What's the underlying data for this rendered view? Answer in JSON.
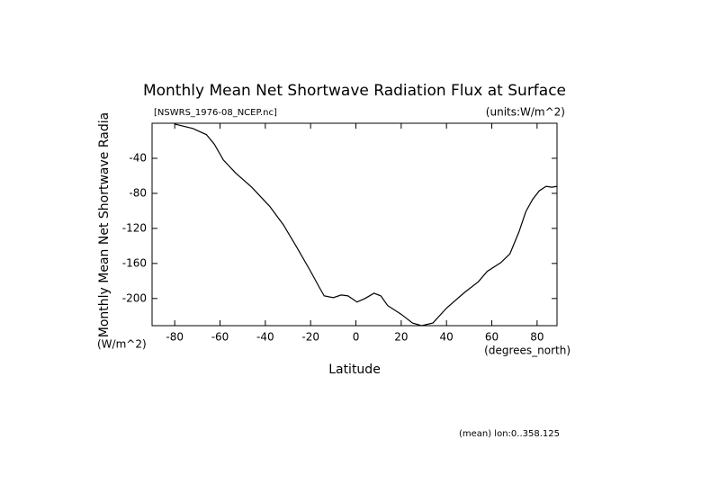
{
  "chart_data": {
    "type": "line",
    "title": "Monthly Mean Net Shortwave Radiation Flux at Surface",
    "file_label": "[NSWRS_1976-08_NCEP.nc]",
    "units_label": "(units:W/m^2)",
    "y_label": "Monthly Mean Net Shortwave Radia",
    "y_units": "(W/m^2)",
    "x_units": "(degrees_north)",
    "x_label": "Latitude",
    "footnote": "(mean) lon:0..358.125",
    "color": "#000000",
    "xlim": [
      -90,
      88.8
    ],
    "ylim": [
      -231,
      0
    ],
    "xticks": [
      -80,
      -60,
      -40,
      -20,
      0,
      20,
      40,
      60,
      80
    ],
    "yticks": [
      -40,
      -80,
      -120,
      -160,
      -200
    ],
    "series": [
      {
        "name": "NSWRS",
        "x": [
          -80,
          -72,
          -66,
          -62.5,
          -58.5,
          -53,
          -46,
          -38,
          -32,
          -26,
          -20,
          -16,
          -14,
          -10,
          -6.5,
          -3.5,
          0.5,
          4,
          8,
          11,
          14,
          20,
          25,
          29,
          34,
          40,
          48,
          54,
          58,
          64,
          68,
          72,
          75,
          78,
          81,
          84,
          86.5,
          88.8
        ],
        "values": [
          -1,
          -6,
          -13,
          -24,
          -42,
          -57,
          -73,
          -95,
          -116,
          -142,
          -169,
          -188,
          -197,
          -199,
          -196,
          -197,
          -204,
          -200,
          -194,
          -197,
          -208,
          -218,
          -228,
          -231,
          -228,
          -211,
          -193,
          -181,
          -169,
          -159,
          -149,
          -124,
          -101,
          -87,
          -77,
          -72,
          -73,
          -72
        ]
      }
    ]
  }
}
